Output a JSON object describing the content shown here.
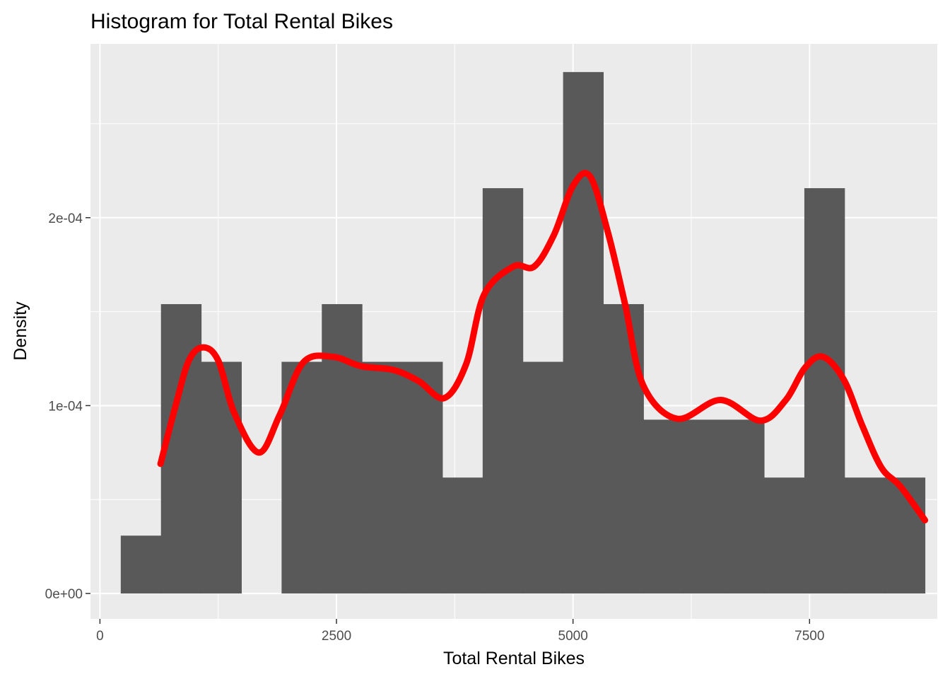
{
  "chart_data": {
    "type": "bar",
    "title": "Histogram for Total Rental Bikes",
    "xlabel": "Total Rental Bikes",
    "ylabel": "Density",
    "xlim": [
      -100,
      8850
    ],
    "ylim": [
      -1.35e-05,
      0.0002925
    ],
    "x_major_ticks": [
      0,
      2500,
      5000,
      7500
    ],
    "x_tick_labels": [
      "0",
      "2500",
      "5000",
      "7500"
    ],
    "x_minor_ticks": [
      1250,
      3750,
      6250
    ],
    "y_major_ticks": [
      0,
      0.0001,
      0.0002
    ],
    "y_tick_labels": [
      "0e+00",
      "1e-04",
      "2e-04"
    ],
    "y_minor_ticks": [
      5e-05,
      0.00015,
      0.00025
    ],
    "grid": true,
    "colors": {
      "panel_background": "#ebebeb",
      "grid": "#ffffff",
      "bar_fill": "#595959",
      "density_line": "#ff0000",
      "tick_text": "#4d4d4d",
      "tick_mark": "#333333"
    },
    "bins": [
      {
        "x0": 220,
        "x1": 645,
        "density": 3.08e-05
      },
      {
        "x0": 645,
        "x1": 1070,
        "density": 0.000154
      },
      {
        "x0": 1070,
        "x1": 1495,
        "density": 0.0001233
      },
      {
        "x0": 1495,
        "x1": 1920,
        "density": 0
      },
      {
        "x0": 1920,
        "x1": 2345,
        "density": 0.0001233
      },
      {
        "x0": 2345,
        "x1": 2770,
        "density": 0.000154
      },
      {
        "x0": 2770,
        "x1": 3195,
        "density": 0.0001233
      },
      {
        "x0": 3195,
        "x1": 3620,
        "density": 0.0001233
      },
      {
        "x0": 3620,
        "x1": 4045,
        "density": 6.17e-05
      },
      {
        "x0": 4045,
        "x1": 4470,
        "density": 0.0002157
      },
      {
        "x0": 4470,
        "x1": 4895,
        "density": 0.0001233
      },
      {
        "x0": 4895,
        "x1": 5320,
        "density": 0.0002775
      },
      {
        "x0": 5320,
        "x1": 5745,
        "density": 0.000154
      },
      {
        "x0": 5745,
        "x1": 6170,
        "density": 9.25e-05
      },
      {
        "x0": 6170,
        "x1": 6595,
        "density": 9.25e-05
      },
      {
        "x0": 6595,
        "x1": 7020,
        "density": 9.25e-05
      },
      {
        "x0": 7020,
        "x1": 7445,
        "density": 6.17e-05
      },
      {
        "x0": 7445,
        "x1": 7870,
        "density": 0.0002157
      },
      {
        "x0": 7870,
        "x1": 8295,
        "density": 6.17e-05
      },
      {
        "x0": 8295,
        "x1": 8720,
        "density": 6.17e-05
      }
    ],
    "density_curve": {
      "x": [
        640,
        800,
        940,
        1090,
        1250,
        1420,
        1680,
        1900,
        2150,
        2460,
        2760,
        3100,
        3370,
        3640,
        3870,
        4060,
        4370,
        4590,
        4800,
        5000,
        5180,
        5370,
        5550,
        5740,
        6100,
        6560,
        6980,
        7250,
        7450,
        7640,
        7860,
        8060,
        8260,
        8460,
        8720
      ],
      "y": [
        6.9e-05,
        0.0001,
        0.000124,
        0.000131,
        0.000124,
        9.6e-05,
        7.5e-05,
        9.5e-05,
        0.000123,
        0.000126,
        0.000121,
        0.000119,
        0.000113,
        0.000104,
        0.000122,
        0.000159,
        0.000174,
        0.000174,
        0.000191,
        0.000217,
        0.000222,
        0.000192,
        0.000154,
        0.000111,
        9.3e-05,
        0.000103,
        9.2e-05,
        0.000103,
        0.00012,
        0.000126,
        0.000114,
        8.9e-05,
        6.7e-05,
        5.7e-05,
        3.9e-05
      ]
    }
  }
}
